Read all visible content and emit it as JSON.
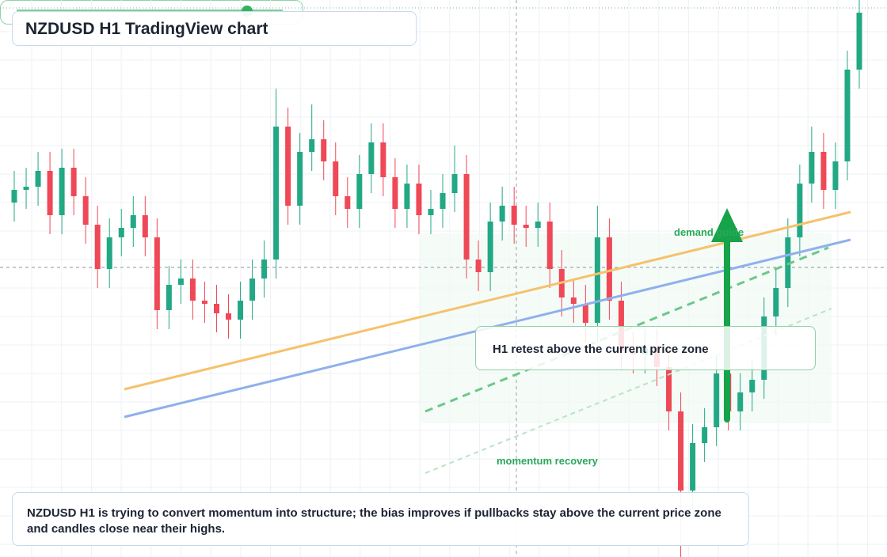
{
  "chart_data": {
    "type": "candlestick",
    "title": "NZDUSD H1 TradingView chart",
    "annotations": [
      "H1 retest above the current price zone",
      "demand guide",
      "momentum recovery"
    ],
    "note": "NZDUSD H1 is trying to convert momentum into structure; the bias improves if pullbacks stay above the current price zone and candles close near their highs.",
    "up_color": "#22a884",
    "down_color": "#ef4856",
    "ylim": [
      0.586,
      0.6036
    ],
    "open": [
      0.5972,
      0.5976,
      0.5977,
      0.5982,
      0.5968,
      0.5983,
      0.5974,
      0.5965,
      0.5951,
      0.5961,
      0.5964,
      0.5968,
      0.5961,
      0.5938,
      0.5946,
      0.5948,
      0.5941,
      0.594,
      0.5937,
      0.5935,
      0.5941,
      0.5948,
      0.5954,
      0.5996,
      0.5971,
      0.5988,
      0.5992,
      0.5985,
      0.5974,
      0.597,
      0.5981,
      0.5991,
      0.598,
      0.597,
      0.5978,
      0.5968,
      0.597,
      0.5975,
      0.5981,
      0.5954,
      0.595,
      0.5966,
      0.5971,
      0.5965,
      0.5964,
      0.5966,
      0.5951,
      0.5942,
      0.594,
      0.5934,
      0.5961,
      0.5941,
      0.5925,
      0.5924,
      0.5926,
      0.592,
      0.5906,
      0.5881,
      0.5896,
      0.5901,
      0.5918,
      0.5906,
      0.5912,
      0.5916,
      0.5936,
      0.5945,
      0.5961,
      0.5978,
      0.5988,
      0.5976,
      0.5985,
      0.6014
    ],
    "high": [
      0.5982,
      0.5983,
      0.5988,
      0.5988,
      0.5989,
      0.5989,
      0.598,
      0.5971,
      0.5967,
      0.597,
      0.5974,
      0.5974,
      0.5967,
      0.5952,
      0.5954,
      0.5954,
      0.5947,
      0.5946,
      0.5943,
      0.5947,
      0.5954,
      0.596,
      0.6008,
      0.6002,
      0.5994,
      0.6003,
      0.5998,
      0.5991,
      0.598,
      0.5987,
      0.5997,
      0.5997,
      0.5986,
      0.5984,
      0.5984,
      0.5976,
      0.5981,
      0.599,
      0.5987,
      0.596,
      0.5972,
      0.5977,
      0.5977,
      0.5971,
      0.5972,
      0.5972,
      0.5957,
      0.5948,
      0.5946,
      0.5971,
      0.5967,
      0.5947,
      0.5931,
      0.5932,
      0.5932,
      0.5926,
      0.5912,
      0.5902,
      0.5907,
      0.5924,
      0.5924,
      0.5918,
      0.5922,
      0.5942,
      0.5951,
      0.5967,
      0.5984,
      0.5996,
      0.5994,
      0.5991,
      0.602,
      0.6036
    ],
    "low": [
      0.5966,
      0.597,
      0.5971,
      0.5962,
      0.5962,
      0.5968,
      0.5959,
      0.5945,
      0.5945,
      0.5955,
      0.5958,
      0.5955,
      0.5932,
      0.5932,
      0.594,
      0.5935,
      0.5934,
      0.5931,
      0.5929,
      0.5929,
      0.5935,
      0.5942,
      0.5948,
      0.5965,
      0.5965,
      0.5982,
      0.5979,
      0.5968,
      0.5964,
      0.5964,
      0.5975,
      0.5974,
      0.5964,
      0.5964,
      0.5962,
      0.5962,
      0.5964,
      0.5969,
      0.5948,
      0.5944,
      0.5944,
      0.596,
      0.5959,
      0.5958,
      0.5958,
      0.5945,
      0.5936,
      0.5934,
      0.5928,
      0.5928,
      0.5935,
      0.5919,
      0.5918,
      0.5918,
      0.5914,
      0.59,
      0.586,
      0.5875,
      0.589,
      0.5895,
      0.59,
      0.59,
      0.5906,
      0.591,
      0.593,
      0.5939,
      0.5955,
      0.5972,
      0.597,
      0.597,
      0.5979,
      0.6008
    ],
    "close": [
      0.5976,
      0.5977,
      0.5982,
      0.5968,
      0.5983,
      0.5974,
      0.5965,
      0.5951,
      0.5961,
      0.5964,
      0.5968,
      0.5961,
      0.5938,
      0.5946,
      0.5948,
      0.5941,
      0.594,
      0.5937,
      0.5935,
      0.5941,
      0.5948,
      0.5954,
      0.5996,
      0.5971,
      0.5988,
      0.5992,
      0.5985,
      0.5974,
      0.597,
      0.5981,
      0.5991,
      0.598,
      0.597,
      0.5978,
      0.5968,
      0.597,
      0.5975,
      0.5981,
      0.5954,
      0.595,
      0.5966,
      0.5971,
      0.5965,
      0.5964,
      0.5966,
      0.5951,
      0.5942,
      0.594,
      0.5934,
      0.5961,
      0.5941,
      0.5925,
      0.5924,
      0.5926,
      0.592,
      0.5906,
      0.5881,
      0.5896,
      0.5901,
      0.5918,
      0.5906,
      0.5912,
      0.5916,
      0.5936,
      0.5945,
      0.5961,
      0.5978,
      0.5988,
      0.5976,
      0.5985,
      0.6014,
      0.6032
    ]
  }
}
